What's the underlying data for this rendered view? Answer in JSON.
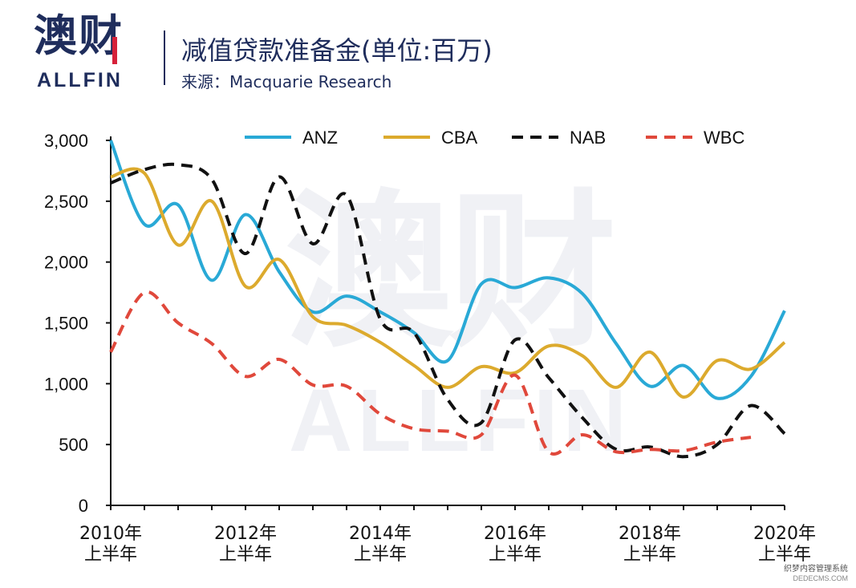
{
  "header": {
    "logo_cn": "澳财",
    "logo_en": "ALLFIN",
    "title": "减值贷款准备金(单位:百万)",
    "source": "来源：Macquarie Research"
  },
  "watermark": {
    "cn": "澳财",
    "en": "ALLFIN"
  },
  "credit": {
    "line1": "织梦内容管理系统",
    "line2": "DEDECMS.COM"
  },
  "chart_data": {
    "type": "line",
    "title": "减值贷款准备金(单位:百万)",
    "xlabel": "",
    "ylabel": "",
    "ylim": [
      0,
      3000
    ],
    "xlim": [
      2010,
      2020
    ],
    "grid": false,
    "legend_position": "top",
    "y_ticks": [
      "0",
      "500",
      "1,000",
      "1,500",
      "2,000",
      "2,500",
      "3,000"
    ],
    "x_ticks": [
      {
        "year": "2010年",
        "half": "上半年"
      },
      {
        "year": "2012年",
        "half": "上半年"
      },
      {
        "year": "2014年",
        "half": "上半年"
      },
      {
        "year": "2016年",
        "half": "上半年"
      },
      {
        "year": "2018年",
        "half": "上半年"
      },
      {
        "year": "2020年",
        "half": "上半年"
      }
    ],
    "x": [
      2010.0,
      2010.5,
      2011.0,
      2011.5,
      2012.0,
      2012.5,
      2013.0,
      2013.5,
      2014.0,
      2014.5,
      2015.0,
      2015.5,
      2016.0,
      2016.5,
      2017.0,
      2017.5,
      2018.0,
      2018.5,
      2019.0,
      2019.5,
      2020.0
    ],
    "series": [
      {
        "name": "ANZ",
        "color": "#29a9d6",
        "dash": "solid",
        "values": [
          3000,
          2310,
          2470,
          1850,
          2390,
          1920,
          1590,
          1720,
          1590,
          1420,
          1190,
          1820,
          1790,
          1870,
          1740,
          1330,
          980,
          1150,
          880,
          1060,
          1600
        ]
      },
      {
        "name": "CBA",
        "color": "#dcaa2d",
        "dash": "solid",
        "values": [
          2700,
          2730,
          2140,
          2500,
          1800,
          2020,
          1550,
          1480,
          1340,
          1150,
          970,
          1140,
          1090,
          1310,
          1230,
          970,
          1260,
          890,
          1190,
          1120,
          1340
        ]
      },
      {
        "name": "NAB",
        "color": "#111111",
        "dash": "dashed",
        "values": [
          2650,
          2760,
          2800,
          2680,
          2070,
          2700,
          2150,
          2550,
          1530,
          1420,
          870,
          680,
          1360,
          1050,
          720,
          460,
          480,
          400,
          500,
          820,
          590
        ]
      },
      {
        "name": "WBC",
        "color": "#e0483b",
        "dash": "dashed",
        "values": [
          1260,
          1750,
          1500,
          1330,
          1060,
          1200,
          990,
          980,
          750,
          630,
          610,
          580,
          1070,
          440,
          580,
          440,
          460,
          450,
          520,
          560,
          null
        ]
      }
    ]
  }
}
